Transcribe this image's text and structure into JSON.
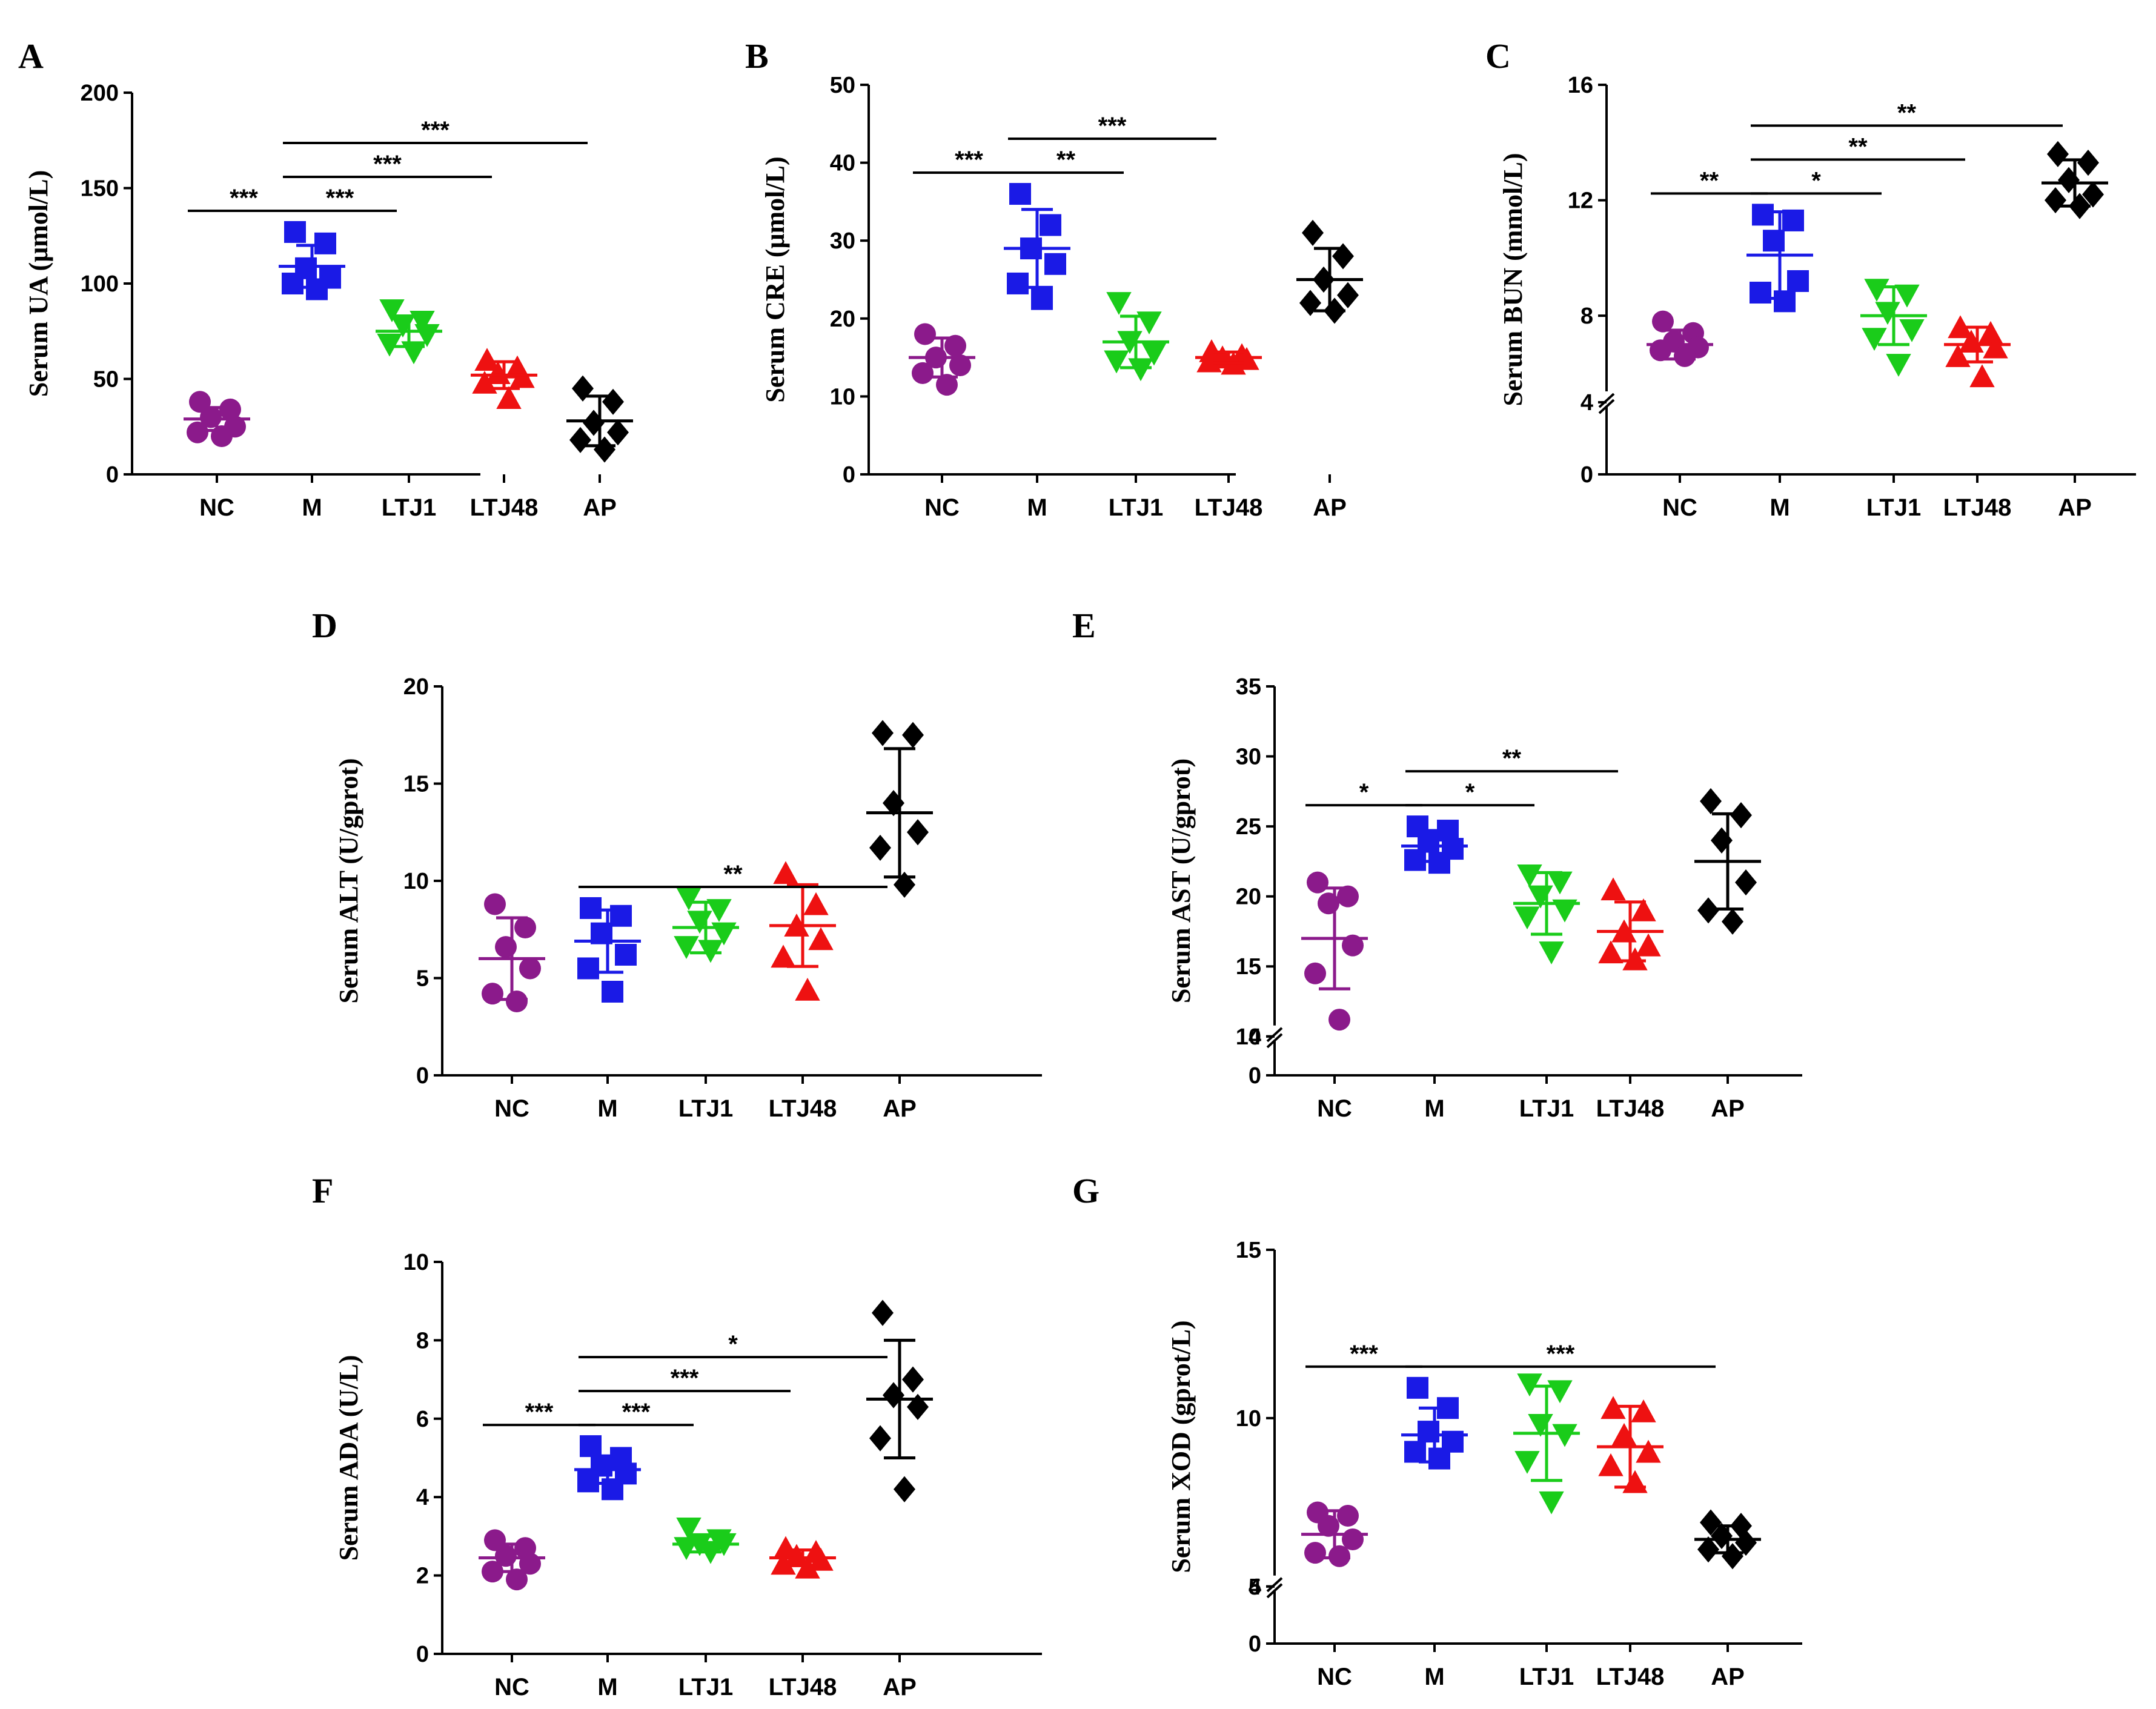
{
  "chart_data": [
    {
      "panel": "A",
      "type": "scatter",
      "ylabel": "Serum UA (μmol/L)",
      "categories": [
        "NC",
        "M",
        "LTJ1",
        "LTJ48",
        "AP"
      ],
      "colors": [
        "#8b1a8b",
        "#1a1ae6",
        "#1acc1a",
        "#ee1111",
        "#000000"
      ],
      "markers": [
        "circle",
        "square",
        "triangle-down",
        "triangle-up",
        "diamond"
      ],
      "ylim": [
        0,
        200
      ],
      "ticks": [
        0,
        50,
        100,
        150,
        200
      ],
      "tick_labels": [
        "0",
        "50",
        "100",
        "150",
        "200"
      ],
      "axis_break": null,
      "groups": [
        {
          "points": [
            38,
            34,
            30,
            25,
            22,
            20
          ],
          "mean": 29,
          "sd": 6
        },
        {
          "points": [
            127,
            121,
            108,
            103,
            100,
            97
          ],
          "mean": 109,
          "sd": 11
        },
        {
          "points": [
            86,
            80,
            78,
            73,
            68,
            64
          ],
          "mean": 75,
          "sd": 8
        },
        {
          "points": [
            60,
            56,
            53,
            51,
            48,
            40
          ],
          "mean": 52,
          "sd": 7
        },
        {
          "points": [
            45,
            38,
            27,
            22,
            18,
            13
          ],
          "mean": 28,
          "sd": 13
        }
      ],
      "significance": [
        {
          "from": 0,
          "to": 1,
          "label": "***"
        },
        {
          "from": 1,
          "to": 2,
          "label": "***"
        },
        {
          "from": 1,
          "to": 3,
          "label": "***"
        },
        {
          "from": 1,
          "to": 4,
          "label": "***"
        }
      ]
    },
    {
      "panel": "B",
      "type": "scatter",
      "ylabel": "Serum CRE (μmol/L)",
      "categories": [
        "NC",
        "M",
        "LTJ1",
        "LTJ48",
        "AP"
      ],
      "colors": [
        "#8b1a8b",
        "#1a1ae6",
        "#1acc1a",
        "#ee1111",
        "#000000"
      ],
      "markers": [
        "circle",
        "square",
        "triangle-down",
        "triangle-up",
        "diamond"
      ],
      "ylim": [
        0,
        50
      ],
      "ticks": [
        0,
        10,
        20,
        30,
        40,
        50
      ],
      "tick_labels": [
        "0",
        "10",
        "20",
        "30",
        "40",
        "50"
      ],
      "axis_break": null,
      "groups": [
        {
          "points": [
            18,
            16.5,
            15,
            14,
            13,
            11.5
          ],
          "mean": 15,
          "sd": 2.5
        },
        {
          "points": [
            36,
            32,
            29,
            27,
            24.5,
            22.5
          ],
          "mean": 29,
          "sd": 5
        },
        {
          "points": [
            22,
            19.5,
            17,
            15.5,
            14.5,
            13.5
          ],
          "mean": 17,
          "sd": 3.3
        },
        {
          "points": [
            15.8,
            15.3,
            15,
            14.8,
            14.5,
            14.2
          ],
          "mean": 15,
          "sd": 0.7
        },
        {
          "points": [
            31,
            28,
            25,
            23,
            22,
            21
          ],
          "mean": 25,
          "sd": 4
        }
      ],
      "significance": [
        {
          "from": 0,
          "to": 1,
          "label": "***"
        },
        {
          "from": 1,
          "to": 2,
          "label": "**"
        },
        {
          "from": 1,
          "to": 3,
          "label": "***"
        }
      ]
    },
    {
      "panel": "C",
      "type": "scatter",
      "ylabel": "Serum BUN (mmol/L)",
      "categories": [
        "NC",
        "M",
        "LTJ1",
        "LTJ48",
        "AP"
      ],
      "colors": [
        "#8b1a8b",
        "#1a1ae6",
        "#1acc1a",
        "#ee1111",
        "#000000"
      ],
      "markers": [
        "circle",
        "square",
        "triangle-down",
        "triangle-up",
        "diamond"
      ],
      "ylim": [
        0,
        16
      ],
      "ticks": [
        0,
        4,
        8,
        12,
        16
      ],
      "tick_labels": [
        "0",
        "4",
        "8",
        "12",
        "16"
      ],
      "axis_break": {
        "low": 4,
        "high": 5
      },
      "groups": [
        {
          "points": [
            7.8,
            7.4,
            7.1,
            6.9,
            6.8,
            6.6
          ],
          "mean": 7.0,
          "sd": 0.5
        },
        {
          "points": [
            11.5,
            11.3,
            10.6,
            9.2,
            8.8,
            8.5
          ],
          "mean": 10.1,
          "sd": 1.5
        },
        {
          "points": [
            8.9,
            8.7,
            8.1,
            7.5,
            7.2,
            6.3
          ],
          "mean": 8.0,
          "sd": 1.0
        },
        {
          "points": [
            7.6,
            7.4,
            7.1,
            6.9,
            6.6,
            5.9
          ],
          "mean": 7.0,
          "sd": 0.6
        },
        {
          "points": [
            13.6,
            13.3,
            12.7,
            12.2,
            12.0,
            11.8
          ],
          "mean": 12.6,
          "sd": 0.8
        }
      ],
      "significance": [
        {
          "from": 0,
          "to": 1,
          "label": "**"
        },
        {
          "from": 1,
          "to": 2,
          "label": "*"
        },
        {
          "from": 1,
          "to": 3,
          "label": "**"
        },
        {
          "from": 1,
          "to": 4,
          "label": "**"
        }
      ]
    },
    {
      "panel": "D",
      "type": "scatter",
      "ylabel": "Serum ALT (U/gprot)",
      "categories": [
        "NC",
        "M",
        "LTJ1",
        "LTJ48",
        "AP"
      ],
      "colors": [
        "#8b1a8b",
        "#1a1ae6",
        "#1acc1a",
        "#ee1111",
        "#000000"
      ],
      "markers": [
        "circle",
        "square",
        "triangle-down",
        "triangle-up",
        "diamond"
      ],
      "ylim": [
        0,
        20
      ],
      "ticks": [
        0,
        5,
        10,
        15,
        20
      ],
      "tick_labels": [
        "0",
        "5",
        "10",
        "15",
        "20"
      ],
      "axis_break": null,
      "groups": [
        {
          "points": [
            8.8,
            7.6,
            6.6,
            5.5,
            4.2,
            3.8
          ],
          "mean": 6.0,
          "sd": 2.1
        },
        {
          "points": [
            8.6,
            8.2,
            7.3,
            6.2,
            5.5,
            4.3
          ],
          "mean": 6.9,
          "sd": 1.6
        },
        {
          "points": [
            9.1,
            8.5,
            7.9,
            7.3,
            6.6,
            6.4
          ],
          "mean": 7.6,
          "sd": 1.3
        },
        {
          "points": [
            10.4,
            8.8,
            7.7,
            7.0,
            6.1,
            4.4
          ],
          "mean": 7.7,
          "sd": 2.1
        },
        {
          "points": [
            17.6,
            17.5,
            14.0,
            12.5,
            11.7,
            9.8
          ],
          "mean": 13.5,
          "sd": 3.3
        }
      ],
      "significance": [
        {
          "from": 1,
          "to": 4,
          "label": "**"
        }
      ]
    },
    {
      "panel": "E",
      "type": "scatter",
      "ylabel": "Serum AST (U/gprot)",
      "categories": [
        "NC",
        "M",
        "LTJ1",
        "LTJ48",
        "AP"
      ],
      "colors": [
        "#8b1a8b",
        "#1a1ae6",
        "#1acc1a",
        "#ee1111",
        "#000000"
      ],
      "markers": [
        "circle",
        "square",
        "triangle-down",
        "triangle-up",
        "diamond"
      ],
      "ylim": [
        0,
        35
      ],
      "ticks": [
        0,
        4,
        10,
        15,
        20,
        25,
        30,
        35
      ],
      "tick_labels": [
        "0",
        "4",
        "10",
        "15",
        "20",
        "25",
        "30",
        "35"
      ],
      "axis_break": {
        "low": 4,
        "high": 10
      },
      "groups": [
        {
          "points": [
            21.0,
            20.0,
            19.5,
            16.5,
            14.5,
            11.2
          ],
          "mean": 17.0,
          "sd": 3.6
        },
        {
          "points": [
            25.0,
            24.7,
            23.9,
            23.4,
            22.6,
            22.4
          ],
          "mean": 23.6,
          "sd": 1.1
        },
        {
          "points": [
            21.5,
            21.0,
            20.0,
            19.0,
            18.5,
            16.0
          ],
          "mean": 19.5,
          "sd": 2.2
        },
        {
          "points": [
            20.5,
            19.0,
            17.5,
            16.5,
            16.0,
            15.5
          ],
          "mean": 17.5,
          "sd": 2.1
        },
        {
          "points": [
            26.8,
            25.8,
            24.0,
            21.0,
            19.0,
            18.2
          ],
          "mean": 22.5,
          "sd": 3.4
        }
      ],
      "significance": [
        {
          "from": 0,
          "to": 1,
          "label": "*"
        },
        {
          "from": 1,
          "to": 2,
          "label": "*"
        },
        {
          "from": 1,
          "to": 3,
          "label": "**"
        }
      ]
    },
    {
      "panel": "F",
      "type": "scatter",
      "ylabel": "Serum ADA (U/L)",
      "categories": [
        "NC",
        "M",
        "LTJ1",
        "LTJ48",
        "AP"
      ],
      "colors": [
        "#8b1a8b",
        "#1a1ae6",
        "#1acc1a",
        "#ee1111",
        "#000000"
      ],
      "markers": [
        "circle",
        "square",
        "triangle-down",
        "triangle-up",
        "diamond"
      ],
      "ylim": [
        0,
        10
      ],
      "ticks": [
        0,
        2,
        4,
        6,
        8,
        10
      ],
      "tick_labels": [
        "0",
        "2",
        "4",
        "6",
        "8",
        "10"
      ],
      "axis_break": null,
      "groups": [
        {
          "points": [
            2.9,
            2.7,
            2.5,
            2.3,
            2.1,
            1.9
          ],
          "mean": 2.45,
          "sd": 0.35
        },
        {
          "points": [
            5.3,
            5.0,
            4.8,
            4.6,
            4.4,
            4.2
          ],
          "mean": 4.7,
          "sd": 0.35
        },
        {
          "points": [
            3.2,
            2.9,
            2.8,
            2.8,
            2.7,
            2.6
          ],
          "mean": 2.8,
          "sd": 0.2
        },
        {
          "points": [
            2.7,
            2.6,
            2.5,
            2.4,
            2.3,
            2.2
          ],
          "mean": 2.45,
          "sd": 0.2
        },
        {
          "points": [
            8.7,
            7.0,
            6.6,
            6.3,
            5.5,
            4.2
          ],
          "mean": 6.5,
          "sd": 1.5
        }
      ],
      "significance": [
        {
          "from": 0,
          "to": 1,
          "label": "***"
        },
        {
          "from": 1,
          "to": 2,
          "label": "***"
        },
        {
          "from": 1,
          "to": 3,
          "label": "***"
        },
        {
          "from": 1,
          "to": 4,
          "label": "*"
        }
      ]
    },
    {
      "panel": "G",
      "type": "scatter",
      "ylabel": "Serum  XOD (gprot/L)",
      "categories": [
        "NC",
        "M",
        "LTJ1",
        "LTJ48",
        "AP"
      ],
      "colors": [
        "#8b1a8b",
        "#1a1ae6",
        "#1acc1a",
        "#ee1111",
        "#000000"
      ],
      "markers": [
        "circle",
        "square",
        "triangle-down",
        "triangle-up",
        "diamond"
      ],
      "ylim": [
        0,
        15
      ],
      "ticks": [
        0,
        4,
        5,
        10,
        15
      ],
      "tick_labels": [
        "0",
        "4",
        "5",
        "10",
        "15"
      ],
      "axis_break": {
        "low": 4,
        "high": 5
      },
      "groups": [
        {
          "points": [
            7.2,
            7.1,
            6.8,
            6.4,
            6.0,
            5.9
          ],
          "mean": 6.55,
          "sd": 0.7
        },
        {
          "points": [
            10.9,
            10.3,
            9.6,
            9.3,
            9.0,
            8.8
          ],
          "mean": 9.5,
          "sd": 0.8
        },
        {
          "points": [
            11.0,
            10.8,
            9.8,
            9.5,
            8.7,
            7.5
          ],
          "mean": 9.55,
          "sd": 1.4
        },
        {
          "points": [
            10.3,
            10.2,
            9.5,
            9.0,
            8.6,
            8.1
          ],
          "mean": 9.15,
          "sd": 1.2
        },
        {
          "points": [
            6.9,
            6.8,
            6.5,
            6.3,
            6.1,
            5.9
          ],
          "mean": 6.4,
          "sd": 0.4
        }
      ],
      "significance": [
        {
          "from": 0,
          "to": 1,
          "label": "***"
        },
        {
          "from": 1,
          "to": 4,
          "label": "***"
        }
      ]
    }
  ]
}
